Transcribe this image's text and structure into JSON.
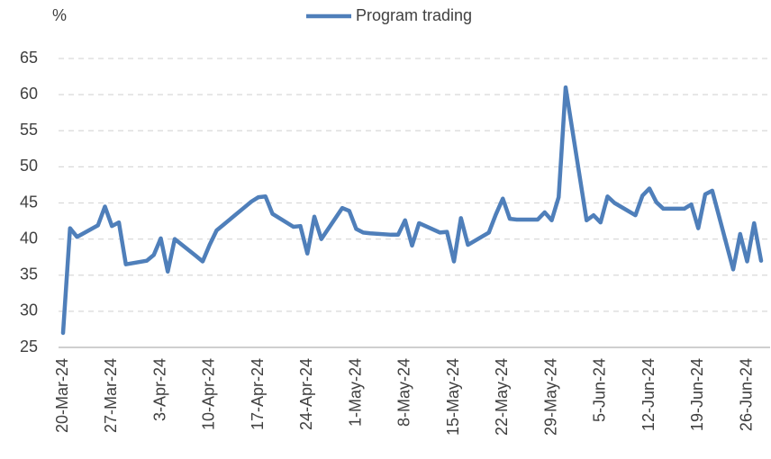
{
  "chart_data": {
    "type": "line",
    "y_label": "%",
    "x": [
      "2024-03-20",
      "2024-03-21",
      "2024-03-22",
      "2024-03-25",
      "2024-03-26",
      "2024-03-27",
      "2024-03-28",
      "2024-03-29",
      "2024-04-01",
      "2024-04-02",
      "2024-04-03",
      "2024-04-04",
      "2024-04-05",
      "2024-04-08",
      "2024-04-09",
      "2024-04-10",
      "2024-04-11",
      "2024-04-12",
      "2024-04-15",
      "2024-04-16",
      "2024-04-17",
      "2024-04-18",
      "2024-04-19",
      "2024-04-22",
      "2024-04-23",
      "2024-04-24",
      "2024-04-25",
      "2024-04-26",
      "2024-04-29",
      "2024-04-30",
      "2024-05-01",
      "2024-05-02",
      "2024-05-03",
      "2024-05-06",
      "2024-05-07",
      "2024-05-08",
      "2024-05-09",
      "2024-05-10",
      "2024-05-13",
      "2024-05-14",
      "2024-05-15",
      "2024-05-16",
      "2024-05-17",
      "2024-05-20",
      "2024-05-21",
      "2024-05-22",
      "2024-05-23",
      "2024-05-24",
      "2024-05-27",
      "2024-05-28",
      "2024-05-29",
      "2024-05-30",
      "2024-05-31",
      "2024-06-03",
      "2024-06-04",
      "2024-06-05",
      "2024-06-06",
      "2024-06-07",
      "2024-06-10",
      "2024-06-11",
      "2024-06-12",
      "2024-06-13",
      "2024-06-14",
      "2024-06-17",
      "2024-06-18",
      "2024-06-19",
      "2024-06-20",
      "2024-06-21",
      "2024-06-24",
      "2024-06-25",
      "2024-06-26",
      "2024-06-27",
      "2024-06-28"
    ],
    "series": [
      {
        "name": "Program trading",
        "color": "#4f7fba",
        "values": [
          27,
          41.5,
          40.3,
          41.9,
          44.5,
          41.8,
          42.3,
          36.5,
          37,
          37.8,
          40.1,
          35.5,
          40,
          37.7,
          36.9,
          39.2,
          41.2,
          42,
          44.4,
          45.2,
          45.8,
          45.9,
          43.5,
          41.7,
          41.8,
          38,
          43.1,
          40,
          44.3,
          43.9,
          41.4,
          40.9,
          40.8,
          40.6,
          40.6,
          42.6,
          39.1,
          42.2,
          40.9,
          41,
          36.9,
          42.9,
          39.2,
          40.9,
          43.4,
          45.6,
          42.8,
          42.7,
          42.7,
          43.7,
          42.6,
          45.8,
          61,
          42.6,
          43.3,
          42.3,
          45.9,
          45,
          43.3,
          46,
          47,
          45.1,
          44.2,
          44.2,
          44.8,
          41.5,
          46.2,
          46.7,
          35.8,
          40.7,
          36.9,
          42.2,
          37
        ]
      }
    ],
    "xlim": [
      "2024-03-20",
      "2024-06-28"
    ],
    "xticks": [
      {
        "value": "2024-03-20",
        "label": "20-Mar-24"
      },
      {
        "value": "2024-03-27",
        "label": "27-Mar-24"
      },
      {
        "value": "2024-04-03",
        "label": "3-Apr-24"
      },
      {
        "value": "2024-04-10",
        "label": "10-Apr-24"
      },
      {
        "value": "2024-04-17",
        "label": "17-Apr-24"
      },
      {
        "value": "2024-04-24",
        "label": "24-Apr-24"
      },
      {
        "value": "2024-05-01",
        "label": "1-May-24"
      },
      {
        "value": "2024-05-08",
        "label": "8-May-24"
      },
      {
        "value": "2024-05-15",
        "label": "15-May-24"
      },
      {
        "value": "2024-05-22",
        "label": "22-May-24"
      },
      {
        "value": "2024-05-29",
        "label": "29-May-24"
      },
      {
        "value": "2024-06-05",
        "label": "5-Jun-24"
      },
      {
        "value": "2024-06-12",
        "label": "12-Jun-24"
      },
      {
        "value": "2024-06-19",
        "label": "19-Jun-24"
      },
      {
        "value": "2024-06-26",
        "label": "26-Jun-24"
      }
    ],
    "ylim": [
      25,
      65
    ],
    "yticks": [
      25,
      30,
      35,
      40,
      45,
      50,
      55,
      60,
      65
    ],
    "grid": true,
    "legend": "top"
  }
}
